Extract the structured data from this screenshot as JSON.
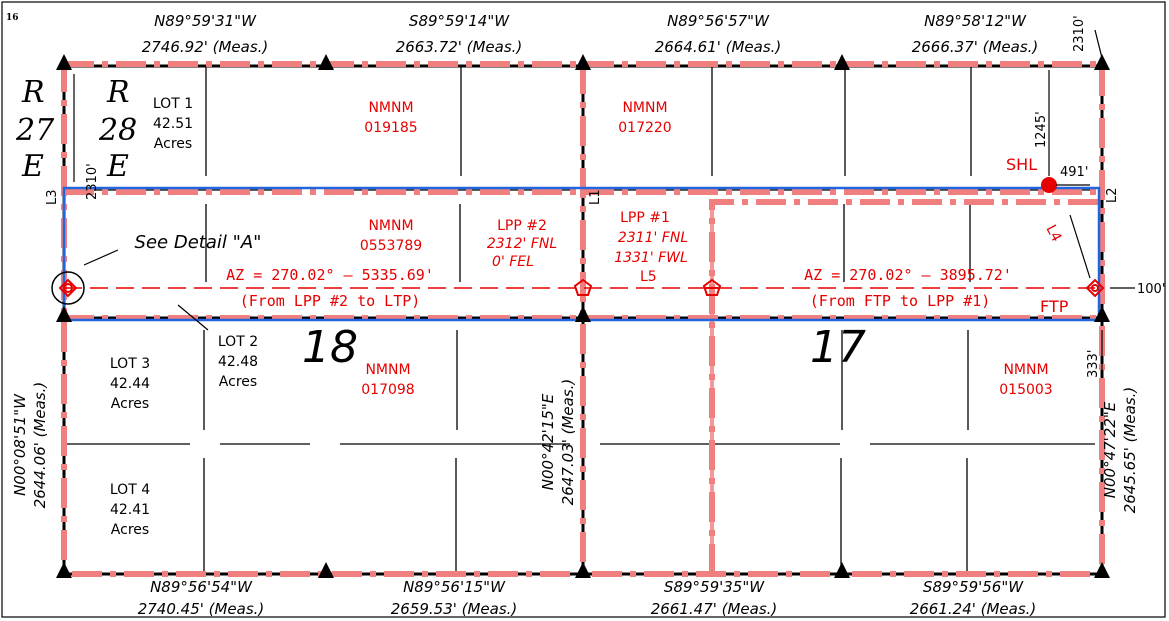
{
  "page_number": "16",
  "bearings_top": [
    {
      "bearing": "N89°59'31\"W",
      "distance": "2746.92' (Meas.)"
    },
    {
      "bearing": "S89°59'14\"W",
      "distance": "2663.72' (Meas.)"
    },
    {
      "bearing": "N89°56'57\"W",
      "distance": "2664.61' (Meas.)"
    },
    {
      "bearing": "N89°58'12\"W",
      "distance": "2666.37' (Meas.)"
    }
  ],
  "bearings_bottom": [
    {
      "bearing": "N89°56'54\"W",
      "distance": "2740.45' (Meas.)"
    },
    {
      "bearing": "N89°56'15\"W",
      "distance": "2659.53' (Meas.)"
    },
    {
      "bearing": "S89°59'35\"W",
      "distance": "2661.47' (Meas.)"
    },
    {
      "bearing": "S89°59'56\"W",
      "distance": "2661.24' (Meas.)"
    }
  ],
  "bearings_vertical": [
    {
      "bearing": "N00°08'51\"W",
      "distance": "2644.06' (Meas.)"
    },
    {
      "bearing": "N00°42'15\"E",
      "distance": "2647.03' (Meas.)"
    },
    {
      "bearing": "N00°47'22\"E",
      "distance": "2645.65' (Meas.)"
    }
  ],
  "ranges": {
    "r27_r": "R",
    "r27_n": "27",
    "r27_e": "E",
    "r28_r": "R",
    "r28_n": "28",
    "r28_e": "E"
  },
  "sections": {
    "s18": "18",
    "s17": "17"
  },
  "lots": [
    {
      "name": "LOT 1",
      "area": "42.51",
      "unit": "Acres"
    },
    {
      "name": "LOT 2",
      "area": "42.48",
      "unit": "Acres"
    },
    {
      "name": "LOT 3",
      "area": "42.44",
      "unit": "Acres"
    },
    {
      "name": "LOT 4",
      "area": "42.41",
      "unit": "Acres"
    }
  ],
  "leases": [
    {
      "l1": "NMNM",
      "l2": "019185"
    },
    {
      "l1": "NMNM",
      "l2": "017220"
    },
    {
      "l1": "NMNM",
      "l2": "0553789"
    },
    {
      "l1": "NMNM",
      "l2": "017098"
    },
    {
      "l1": "NMNM",
      "l2": "015003"
    }
  ],
  "lpp2": {
    "name": "LPP #2",
    "fnl": "2312' FNL",
    "fel": "0' FEL"
  },
  "lpp1": {
    "name": "LPP #1",
    "fnl": "2311' FNL",
    "fwl": "1331' FWL"
  },
  "azimuth_west": {
    "az": "AZ = 270.02° – 5335.69'",
    "note": "(From LPP #2 to LTP)"
  },
  "azimuth_east": {
    "az": "AZ = 270.02° – 3895.72'",
    "note": "(From FTP to LPP #1)"
  },
  "detail_label": "See Detail \"A\"",
  "points": {
    "shl": "SHL",
    "ftp": "FTP"
  },
  "line_labels": {
    "l1": "L1",
    "l2": "L2",
    "l3": "L3",
    "l4": "L4",
    "l5": "L5"
  },
  "dims": {
    "d2310_top": "2310'",
    "d1245": "1245'",
    "d491": "491'",
    "d2310_left": "2310'",
    "d100": "100'",
    "d333": "333'"
  },
  "colors": {
    "lease_line": "#f08080",
    "text_red": "#e60000",
    "spacing_unit": "#2266dd",
    "section_line": "#000000"
  }
}
